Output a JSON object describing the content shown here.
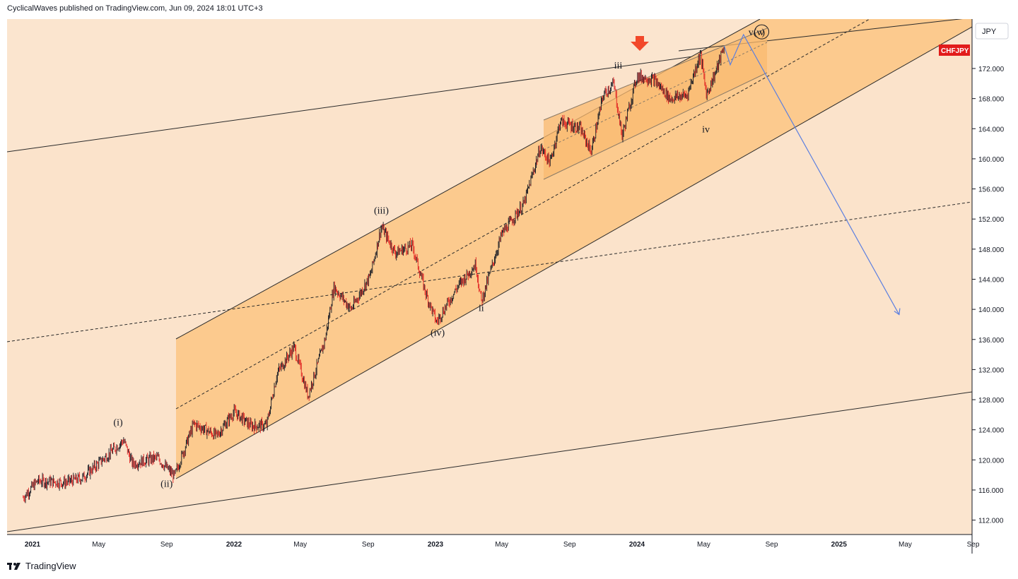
{
  "header": {
    "attribution": "CyclicalWaves published on TradingView.com, Jun 09, 2024 18:01 UTC+3"
  },
  "footer": {
    "brand": "TradingView",
    "logo_icon": "tradingview-logo-icon"
  },
  "colors": {
    "background": "#fbe5cf",
    "channel_fill": "#fcd9a6",
    "channel_fill_inner": "#fbc27e",
    "candle_up": "#131722",
    "candle_down": "#e02020",
    "projection": "#5b7fe0",
    "price_tag_bg": "#e21b1b",
    "arrow_red": "#f2482a"
  },
  "chart_data": {
    "type": "candlestick",
    "symbol": "CHFJPY",
    "currency": "JPY",
    "ylim": [
      110.0,
      177.0
    ],
    "y_ticks": [
      "112.000",
      "116.000",
      "120.000",
      "124.000",
      "128.000",
      "132.000",
      "136.000",
      "140.000",
      "144.000",
      "148.000",
      "152.000",
      "156.000",
      "160.000",
      "164.000",
      "168.000",
      "172.000"
    ],
    "x_ticks": [
      {
        "label": "2021",
        "bold": true
      },
      {
        "label": "May",
        "bold": false
      },
      {
        "label": "Sep",
        "bold": false
      },
      {
        "label": "2022",
        "bold": true
      },
      {
        "label": "May",
        "bold": false
      },
      {
        "label": "Sep",
        "bold": false
      },
      {
        "label": "2023",
        "bold": true
      },
      {
        "label": "May",
        "bold": false
      },
      {
        "label": "Sep",
        "bold": false
      },
      {
        "label": "2024",
        "bold": true
      },
      {
        "label": "May",
        "bold": false
      },
      {
        "label": "Sep",
        "bold": false
      },
      {
        "label": "2025",
        "bold": true
      },
      {
        "label": "May",
        "bold": false
      },
      {
        "label": "Sep",
        "bold": false
      }
    ],
    "price_path": [
      {
        "date": "2020-12-15",
        "close": 115.0
      },
      {
        "date": "2021-01-10",
        "close": 117.2
      },
      {
        "date": "2021-03-01",
        "close": 117.0
      },
      {
        "date": "2021-04-01",
        "close": 117.6
      },
      {
        "date": "2021-05-15",
        "close": 120.5
      },
      {
        "date": "2021-06-15",
        "close": 122.6
      },
      {
        "date": "2021-07-01",
        "close": 119.5
      },
      {
        "date": "2021-08-15",
        "close": 120.3
      },
      {
        "date": "2021-09-15",
        "close": 117.8
      },
      {
        "date": "2021-10-20",
        "close": 124.8
      },
      {
        "date": "2021-12-01",
        "close": 123.2
      },
      {
        "date": "2022-01-01",
        "close": 126.4
      },
      {
        "date": "2022-02-01",
        "close": 124.5
      },
      {
        "date": "2022-03-01",
        "close": 124.6
      },
      {
        "date": "2022-03-20",
        "close": 131.5
      },
      {
        "date": "2022-04-20",
        "close": 135.0
      },
      {
        "date": "2022-05-15",
        "close": 128.5
      },
      {
        "date": "2022-06-15",
        "close": 136.0
      },
      {
        "date": "2022-07-01",
        "close": 143.0
      },
      {
        "date": "2022-08-01",
        "close": 140.0
      },
      {
        "date": "2022-09-05",
        "close": 144.5
      },
      {
        "date": "2022-09-25",
        "close": 151.0
      },
      {
        "date": "2022-10-20",
        "close": 147.5
      },
      {
        "date": "2022-11-20",
        "close": 148.5
      },
      {
        "date": "2022-12-15",
        "close": 142.0
      },
      {
        "date": "2023-01-03",
        "close": 138.3
      },
      {
        "date": "2023-02-10",
        "close": 143.0
      },
      {
        "date": "2023-03-15",
        "close": 146.0
      },
      {
        "date": "2023-03-25",
        "close": 141.0
      },
      {
        "date": "2023-05-01",
        "close": 150.0
      },
      {
        "date": "2023-06-10",
        "close": 154.0
      },
      {
        "date": "2023-07-10",
        "close": 161.5
      },
      {
        "date": "2023-07-28",
        "close": 159.5
      },
      {
        "date": "2023-08-15",
        "close": 165.0
      },
      {
        "date": "2023-09-20",
        "close": 164.0
      },
      {
        "date": "2023-10-10",
        "close": 161.0
      },
      {
        "date": "2023-11-01",
        "close": 168.5
      },
      {
        "date": "2023-11-20",
        "close": 170.0
      },
      {
        "date": "2023-12-05",
        "close": 163.0
      },
      {
        "date": "2024-01-01",
        "close": 171.0
      },
      {
        "date": "2024-02-01",
        "close": 170.5
      },
      {
        "date": "2024-03-01",
        "close": 168.0
      },
      {
        "date": "2024-04-01",
        "close": 168.5
      },
      {
        "date": "2024-04-25",
        "close": 174.0
      },
      {
        "date": "2024-05-06",
        "close": 168.5
      },
      {
        "date": "2024-05-25",
        "close": 172.0
      },
      {
        "date": "2024-06-07",
        "close": 175.0
      }
    ],
    "projection_path": [
      {
        "date": "2024-06-07",
        "price": 175.0
      },
      {
        "date": "2024-06-18",
        "price": 172.5
      },
      {
        "date": "2024-07-12",
        "price": 176.5
      },
      {
        "date": "2025-04-20",
        "price": 139.3
      }
    ],
    "wave_labels": [
      {
        "text": "(i)",
        "date": "2021-06-05",
        "price": 124.6
      },
      {
        "text": "(ii)",
        "date": "2021-09-01",
        "price": 116.4
      },
      {
        "text": "(iii)",
        "date": "2022-09-25",
        "price": 152.7
      },
      {
        "text": "(iv)",
        "date": "2023-01-05",
        "price": 136.5
      },
      {
        "text": "ii",
        "date": "2023-03-25",
        "price": 139.8
      },
      {
        "text": "iii",
        "date": "2023-11-28",
        "price": 172.0
      },
      {
        "text": "iv",
        "date": "2024-05-05",
        "price": 163.5
      },
      {
        "text": "v(v)",
        "date": "2024-08-05",
        "price": 176.4
      },
      {
        "text": "v",
        "date": "2024-08-14",
        "price": 176.4
      }
    ],
    "last_price_tag": "CHFJPY"
  }
}
